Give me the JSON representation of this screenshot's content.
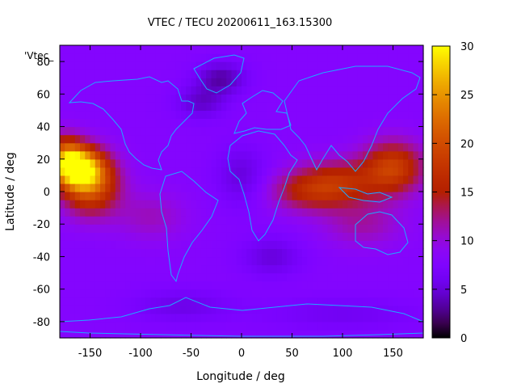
{
  "chart_data": {
    "type": "heatmap",
    "title": "VTEC / TECU 20200611_163.15300",
    "xlabel": "Longitude / deg",
    "ylabel": "Latitude / deg",
    "key_label": "'Vtec_",
    "xlim": [
      -180,
      180
    ],
    "ylim": [
      -90,
      90
    ],
    "xticks": [
      -150,
      -100,
      -50,
      0,
      50,
      100,
      150
    ],
    "yticks": [
      -80,
      -60,
      -40,
      -20,
      0,
      20,
      40,
      60,
      80
    ],
    "colorbar": {
      "range": [
        0,
        30
      ],
      "ticks": [
        0,
        5,
        10,
        15,
        20,
        25,
        30
      ],
      "palette": "gnuplot black-blue-purple-red-orange-yellow"
    },
    "grid": false,
    "background_level": 8,
    "features": [
      {
        "lon": -160,
        "lat": 15,
        "value": 23.5,
        "sx": 22,
        "sy": 12
      },
      {
        "lon": -150,
        "lat": 5,
        "value": 21,
        "sx": 28,
        "sy": 18
      },
      {
        "lon": -175,
        "lat": 20,
        "value": 20,
        "sx": 18,
        "sy": 14
      },
      {
        "lon": 95,
        "lat": 5,
        "value": 16.5,
        "sx": 40,
        "sy": 14
      },
      {
        "lon": 150,
        "lat": 15,
        "value": 18.5,
        "sx": 30,
        "sy": 16
      },
      {
        "lon": 60,
        "lat": 0,
        "value": 13,
        "sx": 35,
        "sy": 12
      },
      {
        "lon": 120,
        "lat": -20,
        "value": 11.5,
        "sx": 40,
        "sy": 14
      },
      {
        "lon": -90,
        "lat": -15,
        "value": 11,
        "sx": 35,
        "sy": 15
      },
      {
        "lon": -40,
        "lat": 55,
        "value": 4.5,
        "sx": 25,
        "sy": 10
      },
      {
        "lon": -20,
        "lat": 70,
        "value": 3.5,
        "sx": 25,
        "sy": 10
      },
      {
        "lon": 0,
        "lat": 10,
        "value": 5,
        "sx": 25,
        "sy": 18
      },
      {
        "lon": 30,
        "lat": -40,
        "value": 5,
        "sx": 30,
        "sy": 12
      },
      {
        "lon": -60,
        "lat": -70,
        "value": 5.5,
        "sx": 50,
        "sy": 10
      },
      {
        "lon": 100,
        "lat": -75,
        "value": 6,
        "sx": 80,
        "sy": 10
      }
    ]
  }
}
